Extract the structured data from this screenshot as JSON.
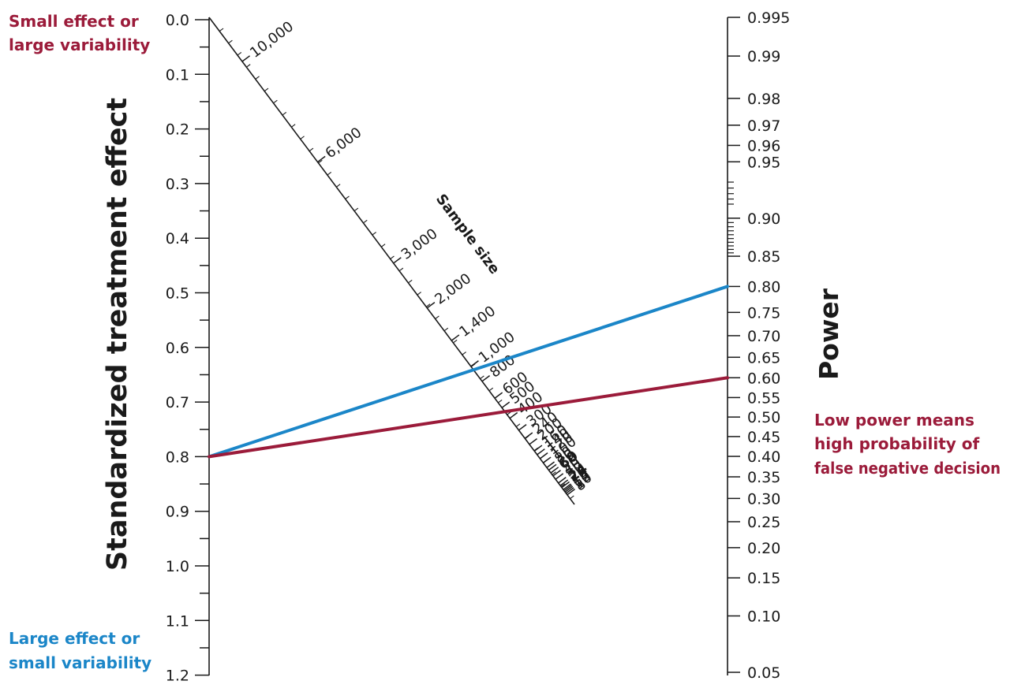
{
  "colors": {
    "red": "#9b1b3a",
    "blue": "#1b86c8",
    "axis": "#1a1a1a"
  },
  "notes": {
    "small_effect": [
      "Small effect or",
      "large variability"
    ],
    "large_effect": [
      "Large effect or",
      "small variability"
    ],
    "low_power": [
      "Low power means",
      "high probability of",
      "false negative decision"
    ]
  },
  "left_axis": {
    "title": "Standardized treatment effect",
    "labels": [
      "0.0",
      "0.1",
      "0.2",
      "0.3",
      "0.4",
      "0.5",
      "0.6",
      "0.7",
      "0.8",
      "0.9",
      "1.0",
      "1.1",
      "1.2"
    ]
  },
  "right_axis": {
    "title": "Power",
    "labels": [
      "0.995",
      "0.99",
      "0.98",
      "0.97",
      "0.96",
      "0.95",
      "0.90",
      "0.85",
      "0.80",
      "0.75",
      "0.70",
      "0.65",
      "0.60",
      "0.55",
      "0.50",
      "0.45",
      "0.40",
      "0.35",
      "0.30",
      "0.25",
      "0.20",
      "0.15",
      "0.10",
      "0.05"
    ]
  },
  "diagonal_axis": {
    "title": "Sample size",
    "labels": [
      "10,000",
      "6,000",
      "3,000",
      "2,000",
      "1,400",
      "1,000",
      "800",
      "600",
      "500",
      "400",
      "300",
      "240",
      "200",
      "160",
      "140",
      "120",
      "100",
      "80",
      "70",
      "60",
      "50",
      "40",
      "30",
      "24",
      "20",
      "16",
      "14",
      "12",
      "10",
      "8"
    ],
    "bold_labels": [
      "60",
      "24"
    ]
  },
  "lines": [
    {
      "name": "",
      "from_effect": "0.8",
      "to_power": "0.80",
      "color": "#1b86c8"
    },
    {
      "name": "",
      "from_effect": "0.8",
      "to_power": "0.60",
      "color": "#9b1b3a"
    }
  ]
}
